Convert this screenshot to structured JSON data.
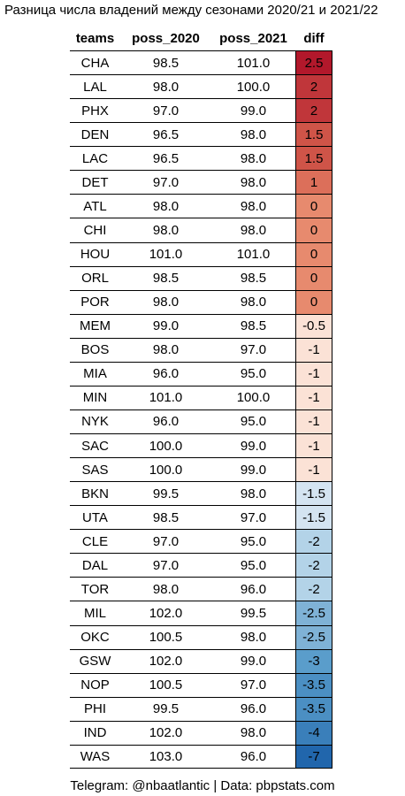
{
  "chart_data": {
    "type": "table",
    "title": "Разница числа владений между сезонами 2020/21 и 2021/22",
    "columns": [
      "teams",
      "poss_2020",
      "poss_2021",
      "diff"
    ],
    "rows": [
      {
        "team": "CHA",
        "poss_2020": "98.5",
        "poss_2021": "101.0",
        "diff": "2.5",
        "color": "#b2182b"
      },
      {
        "team": "LAL",
        "poss_2020": "98.0",
        "poss_2021": "100.0",
        "diff": "2",
        "color": "#c0363a"
      },
      {
        "team": "PHX",
        "poss_2020": "97.0",
        "poss_2021": "99.0",
        "diff": "2",
        "color": "#c0363a"
      },
      {
        "team": "DEN",
        "poss_2020": "96.5",
        "poss_2021": "98.0",
        "diff": "1.5",
        "color": "#cf5448"
      },
      {
        "team": "LAC",
        "poss_2020": "96.5",
        "poss_2021": "98.0",
        "diff": "1.5",
        "color": "#cf5448"
      },
      {
        "team": "DET",
        "poss_2020": "97.0",
        "poss_2021": "98.0",
        "diff": "1",
        "color": "#dc6f5a"
      },
      {
        "team": "ATL",
        "poss_2020": "98.0",
        "poss_2021": "98.0",
        "diff": "0",
        "color": "#e78a6e"
      },
      {
        "team": "CHI",
        "poss_2020": "98.0",
        "poss_2021": "98.0",
        "diff": "0",
        "color": "#e78a6e"
      },
      {
        "team": "HOU",
        "poss_2020": "101.0",
        "poss_2021": "101.0",
        "diff": "0",
        "color": "#e78a6e"
      },
      {
        "team": "ORL",
        "poss_2020": "98.5",
        "poss_2021": "98.5",
        "diff": "0",
        "color": "#e78a6e"
      },
      {
        "team": "POR",
        "poss_2020": "98.0",
        "poss_2021": "98.0",
        "diff": "0",
        "color": "#e78a6e"
      },
      {
        "team": "MEM",
        "poss_2020": "99.0",
        "poss_2021": "98.5",
        "diff": "-0.5",
        "color": "#fbe2d6"
      },
      {
        "team": "BOS",
        "poss_2020": "98.0",
        "poss_2021": "97.0",
        "diff": "-1",
        "color": "#fbe2d6"
      },
      {
        "team": "MIA",
        "poss_2020": "96.0",
        "poss_2021": "95.0",
        "diff": "-1",
        "color": "#fbe2d6"
      },
      {
        "team": "MIN",
        "poss_2020": "101.0",
        "poss_2021": "100.0",
        "diff": "-1",
        "color": "#fbe2d6"
      },
      {
        "team": "NYK",
        "poss_2020": "96.0",
        "poss_2021": "95.0",
        "diff": "-1",
        "color": "#fbe2d6"
      },
      {
        "team": "SAC",
        "poss_2020": "100.0",
        "poss_2021": "99.0",
        "diff": "-1",
        "color": "#fbe2d6"
      },
      {
        "team": "SAS",
        "poss_2020": "100.0",
        "poss_2021": "99.0",
        "diff": "-1",
        "color": "#fbe2d6"
      },
      {
        "team": "BKN",
        "poss_2020": "99.5",
        "poss_2021": "98.0",
        "diff": "-1.5",
        "color": "#d4e4f1"
      },
      {
        "team": "UTA",
        "poss_2020": "98.5",
        "poss_2021": "97.0",
        "diff": "-1.5",
        "color": "#d4e4f1"
      },
      {
        "team": "CLE",
        "poss_2020": "97.0",
        "poss_2021": "95.0",
        "diff": "-2",
        "color": "#b3d3e8"
      },
      {
        "team": "DAL",
        "poss_2020": "97.0",
        "poss_2021": "95.0",
        "diff": "-2",
        "color": "#b3d3e8"
      },
      {
        "team": "TOR",
        "poss_2020": "98.0",
        "poss_2021": "96.0",
        "diff": "-2",
        "color": "#b3d3e8"
      },
      {
        "team": "MIL",
        "poss_2020": "102.0",
        "poss_2021": "99.5",
        "diff": "-2.5",
        "color": "#7fb2d6"
      },
      {
        "team": "OKC",
        "poss_2020": "100.5",
        "poss_2021": "98.0",
        "diff": "-2.5",
        "color": "#7fb2d6"
      },
      {
        "team": "GSW",
        "poss_2020": "102.0",
        "poss_2021": "99.0",
        "diff": "-3",
        "color": "#5a9dcb"
      },
      {
        "team": "NOP",
        "poss_2020": "100.5",
        "poss_2021": "97.0",
        "diff": "-3.5",
        "color": "#4b8fc3"
      },
      {
        "team": "PHI",
        "poss_2020": "99.5",
        "poss_2021": "96.0",
        "diff": "-3.5",
        "color": "#4b8fc3"
      },
      {
        "team": "IND",
        "poss_2020": "102.0",
        "poss_2021": "98.0",
        "diff": "-4",
        "color": "#3a7fba"
      },
      {
        "team": "WAS",
        "poss_2020": "103.0",
        "poss_2021": "96.0",
        "diff": "-7",
        "color": "#2166ac"
      }
    ]
  },
  "footer": "Telegram: @nbaatlantic | Data: pbpstats.com"
}
